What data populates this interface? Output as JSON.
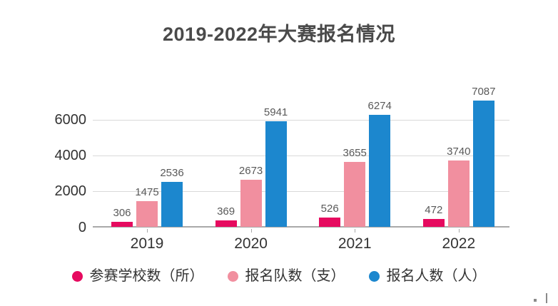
{
  "title": "2019-2022年大赛报名情况",
  "chart_data": {
    "type": "bar",
    "title": "2019-2022年大赛报名情况",
    "categories": [
      "2019",
      "2020",
      "2021",
      "2022"
    ],
    "series": [
      {
        "name": "参赛学校数（所）",
        "color": "#e60a5f",
        "values": [
          306,
          369,
          526,
          472
        ]
      },
      {
        "name": "报名队数（支）",
        "color": "#f18f9f",
        "values": [
          1475,
          2673,
          3655,
          3740
        ]
      },
      {
        "name": "报名人数（人）",
        "color": "#1c87ce",
        "values": [
          2536,
          5941,
          6274,
          7087
        ]
      }
    ],
    "xlabel": "",
    "ylabel": "",
    "ylim": [
      0,
      7400
    ],
    "yticks": [
      0,
      2000,
      4000,
      6000
    ],
    "grid": true,
    "legend_position": "bottom",
    "bar_value_labels": true
  },
  "colors": {
    "title_text": "#4a4a4a",
    "axis_text": "#333333",
    "value_label_text": "#595959",
    "gridline": "#d9d9d9",
    "axis_line": "#a9a9a9",
    "background": "#ffffff"
  }
}
